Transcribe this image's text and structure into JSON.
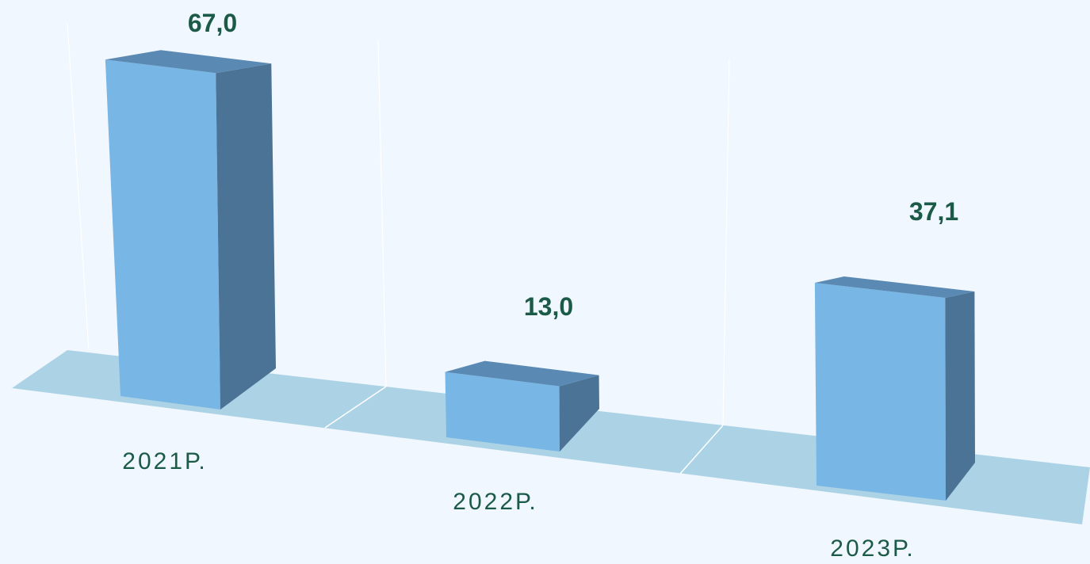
{
  "chart_data": {
    "type": "bar",
    "categories": [
      "2021Р.",
      "2022Р.",
      "2023Р."
    ],
    "values": [
      67.0,
      13.0,
      37.1
    ],
    "data_labels": [
      "67,0",
      "13,0",
      "37,1"
    ],
    "title": "",
    "xlabel": "",
    "ylabel": "",
    "ylim": [
      0,
      70
    ],
    "grid": true,
    "legend": "none",
    "style": "3d-column"
  },
  "colors": {
    "background": "#f0f7fe",
    "floor": "#acd3e5",
    "bar_front": "#78b6e5",
    "bar_top": "#5a8ab4",
    "bar_side": "#4b7396",
    "label_text": "#1c5a48",
    "gridline": "#ffffff"
  }
}
